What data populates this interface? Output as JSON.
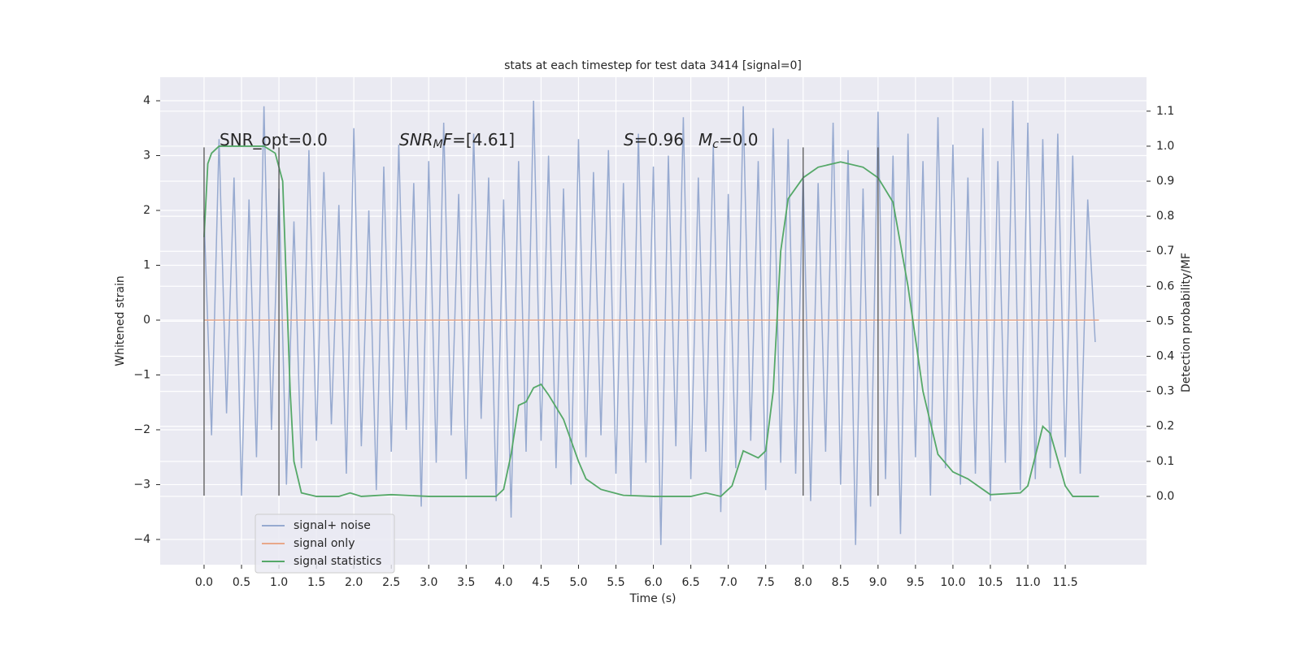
{
  "chart_data": {
    "type": "line",
    "title": "stats at each timestep for test data 3414 [signal=0]",
    "xlabel": "Time (s)",
    "ylabel": "Whitened strain",
    "y2label": "Detection probability/MF",
    "xlim": [
      -0.586,
      12.585
    ],
    "ylim": [
      -4.46,
      4.43
    ],
    "y2lim": [
      -0.195,
      1.197
    ],
    "xticks": [
      {
        "value": 0,
        "label": "0.0"
      },
      0.5,
      {
        "value": 1,
        "label": "1.0"
      },
      1.5,
      {
        "value": 2,
        "label": "2.0"
      },
      2.5,
      {
        "value": 3,
        "label": "3.0"
      },
      3.5,
      {
        "value": 4,
        "label": "4.0"
      },
      4.5,
      {
        "value": 5,
        "label": "5.0"
      },
      5.5,
      {
        "value": 6,
        "label": "6.0"
      },
      6.5,
      {
        "value": 7,
        "label": "7.0"
      },
      7.5,
      {
        "value": 8,
        "label": "8.0"
      },
      8.5,
      {
        "value": 9,
        "label": "9.0"
      },
      9.5,
      {
        "value": 10,
        "label": "10.0"
      },
      10.5,
      {
        "value": 11,
        "label": "11.0"
      },
      11.5
    ],
    "yticks": [
      {
        "value": -4,
        "label": "−4"
      },
      {
        "value": -3,
        "label": "−3"
      },
      {
        "value": -2,
        "label": "−2"
      },
      {
        "value": -1,
        "label": "−1"
      },
      0,
      1,
      2,
      3,
      4
    ],
    "y2ticks": [
      {
        "value": 0,
        "label": "0.0"
      },
      0.1,
      0.2,
      0.3,
      0.4,
      0.5,
      0.6,
      0.7,
      0.8,
      0.9,
      {
        "value": 1,
        "label": "1.0"
      },
      1.1
    ],
    "grid": true,
    "legend_loc": "lower left",
    "vlines": [
      0,
      1,
      8,
      9
    ],
    "vline_color": "#555555",
    "vline_ymin": -3.2,
    "vline_ymax": 3.15,
    "annotations": [
      [
        {
          "text": "SNR_opt=0.0",
          "style": "normal"
        }
      ],
      [
        {
          "text": "SNR",
          "style": "italic"
        },
        {
          "text": "M",
          "style": "sub"
        },
        {
          "text": "F",
          "style": "italic"
        },
        {
          "text": "=[4.61]",
          "style": "normal"
        }
      ],
      [
        {
          "text": "S",
          "style": "italic"
        },
        {
          "text": "=0.96",
          "style": "normal"
        }
      ],
      [
        {
          "text": "M",
          "style": "italic"
        },
        {
          "text": "c",
          "style": "sub"
        },
        {
          "text": "=0.0",
          "style": "normal"
        }
      ]
    ],
    "series": [
      {
        "name": "signal+ noise",
        "color": "#97aad0",
        "x": [
          0,
          0.1,
          0.2,
          0.3,
          0.4,
          0.5,
          0.6,
          0.7,
          0.8,
          0.9,
          1,
          1.1,
          1.2,
          1.3,
          1.4,
          1.5,
          1.6,
          1.7,
          1.8,
          1.9,
          2,
          2.1,
          2.2,
          2.3,
          2.4,
          2.5,
          2.6,
          2.7,
          2.8,
          2.9,
          3,
          3.1,
          3.2,
          3.3,
          3.4,
          3.5,
          3.6,
          3.7,
          3.8,
          3.9,
          4,
          4.1,
          4.2,
          4.3,
          4.4,
          4.5,
          4.6,
          4.7,
          4.8,
          4.9,
          5,
          5.1,
          5.2,
          5.3,
          5.4,
          5.5,
          5.6,
          5.7,
          5.8,
          5.9,
          6,
          6.1,
          6.2,
          6.3,
          6.4,
          6.5,
          6.6,
          6.7,
          6.8,
          6.9,
          7,
          7.1,
          7.2,
          7.3,
          7.4,
          7.5,
          7.6,
          7.7,
          7.8,
          7.9,
          8,
          8.1,
          8.2,
          8.3,
          8.4,
          8.5,
          8.6,
          8.7,
          8.8,
          8.9,
          9,
          9.1,
          9.2,
          9.3,
          9.4,
          9.5,
          9.6,
          9.7,
          9.8,
          9.9,
          10,
          10.1,
          10.2,
          10.3,
          10.4,
          10.5,
          10.6,
          10.7,
          10.8,
          10.9,
          11,
          11.1,
          11.2,
          11.3,
          11.4,
          11.5,
          11.6,
          11.7,
          11.8,
          11.9
        ],
        "values": [
          1.9,
          -2.1,
          3.3,
          -1.7,
          2.6,
          -3.2,
          2.2,
          -2.5,
          3.9,
          -2.0,
          2.4,
          -3.0,
          1.8,
          -2.7,
          3.1,
          -2.2,
          2.7,
          -1.9,
          2.1,
          -2.8,
          3.5,
          -2.3,
          2.0,
          -3.1,
          2.8,
          -2.4,
          3.2,
          -2.0,
          2.5,
          -3.4,
          2.9,
          -2.6,
          3.6,
          -2.1,
          2.3,
          -2.9,
          3.4,
          -1.8,
          2.6,
          -3.3,
          2.2,
          -3.6,
          2.9,
          -2.4,
          4.0,
          -2.2,
          3.0,
          -2.7,
          2.4,
          -3.0,
          3.3,
          -2.5,
          2.7,
          -2.1,
          3.1,
          -2.8,
          2.5,
          -3.2,
          3.4,
          -2.6,
          2.8,
          -4.1,
          3.0,
          -2.3,
          3.7,
          -2.9,
          2.6,
          -2.4,
          3.2,
          -3.5,
          2.3,
          -2.7,
          3.9,
          -2.2,
          2.9,
          -3.1,
          3.5,
          -2.6,
          3.3,
          -2.8,
          2.7,
          -3.3,
          2.5,
          -2.4,
          3.6,
          -3.0,
          3.1,
          -4.1,
          2.4,
          -3.4,
          3.8,
          -2.9,
          3.0,
          -3.9,
          3.4,
          -2.5,
          2.9,
          -3.2,
          3.7,
          -2.7,
          3.2,
          -3.0,
          2.6,
          -2.8,
          3.5,
          -3.3,
          2.9,
          -2.6,
          4.0,
          -3.1,
          3.6,
          -2.9,
          3.3,
          -2.7,
          3.4,
          -2.5,
          3.0,
          -2.8,
          2.2,
          -0.4
        ]
      },
      {
        "name": "signal only",
        "color": "#e8a88a",
        "x": [
          0,
          11.95
        ],
        "values": [
          0,
          0
        ]
      },
      {
        "name": "signal statistics",
        "color": "#55a868",
        "axis": "y2",
        "x": [
          0,
          0.05,
          0.1,
          0.2,
          0.5,
          0.8,
          0.95,
          1.05,
          1.1,
          1.15,
          1.2,
          1.3,
          1.5,
          1.8,
          1.95,
          2.1,
          2.5,
          3.0,
          3.5,
          3.9,
          4.0,
          4.1,
          4.2,
          4.3,
          4.4,
          4.5,
          4.6,
          4.8,
          5.0,
          5.1,
          5.3,
          5.6,
          6.0,
          6.5,
          6.7,
          6.9,
          7.05,
          7.2,
          7.3,
          7.4,
          7.5,
          7.6,
          7.7,
          7.8,
          8.0,
          8.2,
          8.5,
          8.8,
          9.0,
          9.2,
          9.4,
          9.6,
          9.8,
          10.0,
          10.2,
          10.5,
          10.9,
          11.0,
          11.2,
          11.3,
          11.5,
          11.6,
          11.95
        ],
        "values": [
          0.74,
          0.95,
          0.98,
          1.0,
          1.0,
          1.0,
          0.98,
          0.9,
          0.6,
          0.3,
          0.1,
          0.01,
          0.0,
          0.0,
          0.01,
          0.0,
          0.005,
          0.0,
          0.0,
          0.0,
          0.02,
          0.12,
          0.26,
          0.27,
          0.31,
          0.32,
          0.29,
          0.22,
          0.1,
          0.05,
          0.02,
          0.003,
          0.0,
          0.0,
          0.01,
          0.0,
          0.03,
          0.13,
          0.12,
          0.11,
          0.13,
          0.3,
          0.7,
          0.85,
          0.91,
          0.94,
          0.955,
          0.94,
          0.91,
          0.84,
          0.6,
          0.3,
          0.12,
          0.07,
          0.05,
          0.005,
          0.01,
          0.03,
          0.2,
          0.18,
          0.03,
          0.0,
          0.0
        ]
      }
    ]
  }
}
